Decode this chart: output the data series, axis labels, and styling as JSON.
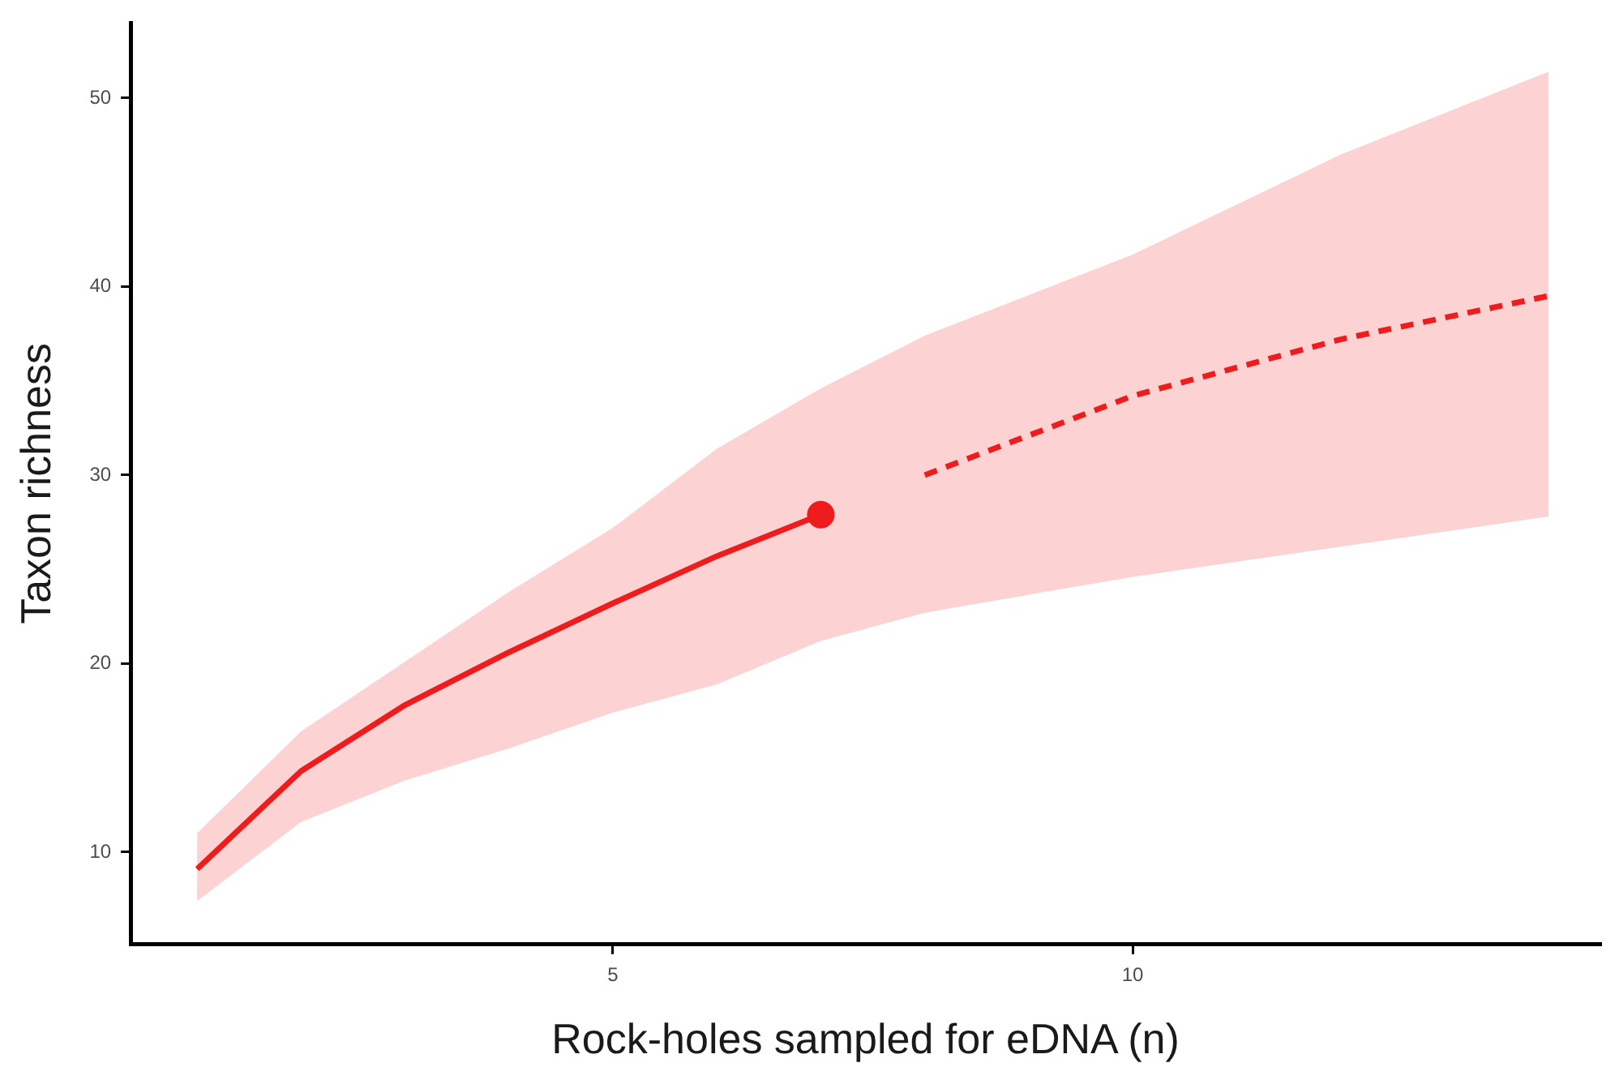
{
  "chart_data": {
    "type": "line",
    "xlabel": "Rock-holes sampled for eDNA (n)",
    "ylabel": "Taxon richness",
    "xlim": [
      0.36,
      14.5
    ],
    "xticks": [
      5,
      10
    ],
    "ylim": [
      5.1,
      54
    ],
    "yticks": [
      10,
      20,
      30,
      40,
      50
    ],
    "grid": false,
    "legend": false,
    "series": [
      {
        "color": "#ee1c1c",
        "line_style": "solid",
        "marker": "none",
        "x": [
          1,
          2,
          3,
          4,
          5,
          6,
          7
        ],
        "values": [
          9.1,
          14.3,
          17.8,
          20.6,
          23.2,
          25.7,
          27.9
        ],
        "lower": [
          7.4,
          11.6,
          13.8,
          15.5,
          17.4,
          18.9,
          21.2
        ],
        "upper": [
          11.0,
          16.4,
          20.1,
          23.8,
          27.2,
          31.4,
          34.6
        ]
      },
      {
        "color": "#ee1c1c",
        "line_style": "dashed",
        "marker": "none",
        "x": [
          7,
          8,
          10,
          12,
          14
        ],
        "values": [
          null,
          30.0,
          34.2,
          37.2,
          39.5
        ],
        "lower": [
          21.2,
          22.7,
          24.6,
          26.2,
          27.8
        ],
        "upper": [
          34.6,
          37.4,
          41.7,
          47.0,
          51.4
        ]
      },
      {
        "type": "scatter",
        "color": "#ee1c1c",
        "marker": "circle",
        "x": [
          7
        ],
        "values": [
          27.9
        ]
      }
    ]
  }
}
